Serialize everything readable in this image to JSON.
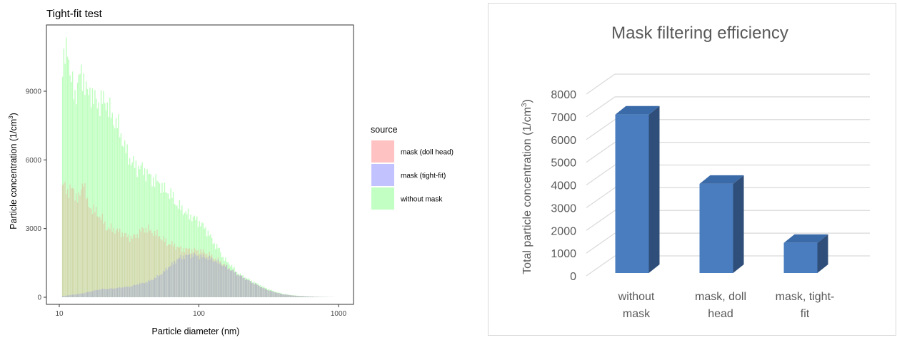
{
  "chart_data": [
    {
      "type": "histogram",
      "title": "Tight-fit test",
      "xlabel": "Particle diameter (nm)",
      "ylabel_main": "Particle concentration (1/cm",
      "ylabel_sup": "3",
      "ylabel_end": ")",
      "x_scale": "log",
      "xlim": [
        10,
        1000
      ],
      "ylim": [
        0,
        11500
      ],
      "x_ticks": [
        10,
        100,
        1000
      ],
      "x_tick_labels": [
        "10",
        "100",
        "1000"
      ],
      "y_ticks": [
        0,
        3000,
        6000,
        9000
      ],
      "y_tick_labels": [
        "0",
        "3000",
        "6000",
        "9000"
      ],
      "grid": false,
      "legend_title": "source",
      "legend_position": "right",
      "series": [
        {
          "name": "without mask",
          "color": "#00ff00",
          "points": [
            [
              10.5,
              9800
            ],
            [
              11,
              10400
            ],
            [
              11.5,
              11200
            ],
            [
              12,
              9600
            ],
            [
              13,
              8800
            ],
            [
              14,
              9700
            ],
            [
              15,
              9600
            ],
            [
              16,
              8800
            ],
            [
              17,
              9000
            ],
            [
              18,
              8600
            ],
            [
              19,
              8400
            ],
            [
              20,
              8600
            ],
            [
              22,
              8500
            ],
            [
              24,
              7800
            ],
            [
              26,
              7600
            ],
            [
              28,
              7000
            ],
            [
              30,
              6400
            ],
            [
              33,
              5900
            ],
            [
              36,
              5700
            ],
            [
              40,
              5600
            ],
            [
              44,
              5300
            ],
            [
              48,
              5100
            ],
            [
              52,
              5000
            ],
            [
              56,
              4700
            ],
            [
              60,
              4600
            ],
            [
              65,
              4400
            ],
            [
              70,
              4000
            ],
            [
              75,
              3900
            ],
            [
              80,
              3700
            ],
            [
              90,
              3500
            ],
            [
              100,
              3300
            ],
            [
              110,
              3050
            ],
            [
              120,
              2700
            ],
            [
              130,
              2300
            ],
            [
              140,
              2100
            ],
            [
              150,
              1700
            ],
            [
              170,
              1400
            ],
            [
              190,
              1050
            ],
            [
              210,
              900
            ],
            [
              240,
              700
            ],
            [
              270,
              550
            ],
            [
              300,
              400
            ],
            [
              350,
              250
            ],
            [
              400,
              150
            ],
            [
              450,
              100
            ],
            [
              500,
              70
            ],
            [
              600,
              40
            ],
            [
              700,
              20
            ],
            [
              850,
              8
            ],
            [
              1000,
              0
            ]
          ]
        },
        {
          "name": "mask (doll head)",
          "color": "#ff6666",
          "points": [
            [
              10.5,
              5000
            ],
            [
              11,
              4800
            ],
            [
              11.5,
              4600
            ],
            [
              12,
              4800
            ],
            [
              13,
              4500
            ],
            [
              14,
              4300
            ],
            [
              15,
              5200
            ],
            [
              16,
              4000
            ],
            [
              17,
              3900
            ],
            [
              18,
              3800
            ],
            [
              19,
              3600
            ],
            [
              20,
              3500
            ],
            [
              22,
              3000
            ],
            [
              24,
              3000
            ],
            [
              26,
              2900
            ],
            [
              28,
              2800
            ],
            [
              30,
              2700
            ],
            [
              33,
              2600
            ],
            [
              36,
              2700
            ],
            [
              40,
              3000
            ],
            [
              44,
              2950
            ],
            [
              48,
              2800
            ],
            [
              52,
              2700
            ],
            [
              56,
              2500
            ],
            [
              60,
              2350
            ],
            [
              65,
              2300
            ],
            [
              70,
              2200
            ],
            [
              75,
              2100
            ],
            [
              80,
              2100
            ],
            [
              90,
              2050
            ],
            [
              100,
              2050
            ],
            [
              110,
              1950
            ],
            [
              120,
              1850
            ],
            [
              130,
              1700
            ],
            [
              140,
              1600
            ],
            [
              150,
              1450
            ],
            [
              170,
              1200
            ],
            [
              190,
              1000
            ],
            [
              210,
              850
            ],
            [
              240,
              650
            ],
            [
              270,
              500
            ],
            [
              300,
              350
            ],
            [
              350,
              220
            ],
            [
              400,
              130
            ],
            [
              450,
              90
            ],
            [
              500,
              60
            ],
            [
              600,
              35
            ],
            [
              700,
              18
            ],
            [
              850,
              6
            ],
            [
              1000,
              0
            ]
          ]
        },
        {
          "name": "mask (tight-fit)",
          "color": "#6666ff",
          "points": [
            [
              10.5,
              50
            ],
            [
              11,
              60
            ],
            [
              11.5,
              80
            ],
            [
              12,
              100
            ],
            [
              13,
              120
            ],
            [
              14,
              150
            ],
            [
              15,
              180
            ],
            [
              16,
              220
            ],
            [
              17,
              260
            ],
            [
              18,
              300
            ],
            [
              19,
              320
            ],
            [
              20,
              350
            ],
            [
              22,
              360
            ],
            [
              24,
              380
            ],
            [
              26,
              400
            ],
            [
              28,
              430
            ],
            [
              30,
              450
            ],
            [
              33,
              480
            ],
            [
              36,
              560
            ],
            [
              40,
              620
            ],
            [
              44,
              700
            ],
            [
              48,
              820
            ],
            [
              52,
              950
            ],
            [
              56,
              1100
            ],
            [
              60,
              1300
            ],
            [
              65,
              1450
            ],
            [
              70,
              1650
            ],
            [
              75,
              1750
            ],
            [
              80,
              1800
            ],
            [
              90,
              1850
            ],
            [
              100,
              1800
            ],
            [
              110,
              1750
            ],
            [
              120,
              1700
            ],
            [
              130,
              1600
            ],
            [
              140,
              1500
            ],
            [
              150,
              1400
            ],
            [
              170,
              1200
            ],
            [
              190,
              1000
            ],
            [
              210,
              850
            ],
            [
              240,
              650
            ],
            [
              270,
              500
            ],
            [
              300,
              350
            ],
            [
              350,
              220
            ],
            [
              400,
              130
            ],
            [
              450,
              90
            ],
            [
              500,
              60
            ],
            [
              600,
              35
            ],
            [
              700,
              18
            ],
            [
              850,
              6
            ],
            [
              1000,
              0
            ]
          ]
        }
      ],
      "legend_order": [
        "mask (doll head)",
        "mask (tight-fit)",
        "without mask"
      ]
    },
    {
      "type": "bar",
      "title": "Mask filtering efficiency",
      "ylabel_main": "Total particle concentration (1/cm",
      "ylabel_sup": "3",
      "ylabel_end": ")",
      "categories": [
        [
          "without",
          "mask"
        ],
        [
          "mask, doll",
          "head"
        ],
        [
          "mask, tight-",
          "fit"
        ]
      ],
      "values": [
        7100,
        4050,
        1450
      ],
      "ylim": [
        0,
        8000
      ],
      "y_ticks": [
        0,
        1000,
        2000,
        3000,
        4000,
        5000,
        6000,
        7000,
        8000
      ],
      "y_tick_labels": [
        "0",
        "1000",
        "2000",
        "3000",
        "4000",
        "5000",
        "6000",
        "7000",
        "8000"
      ],
      "grid": true,
      "style": "3d",
      "colors": {
        "front": "#4a7dbf",
        "side": "#2f4f7a",
        "top": "#3a6aa8",
        "grid": "#d9d9d9",
        "text": "#595959"
      }
    }
  ]
}
